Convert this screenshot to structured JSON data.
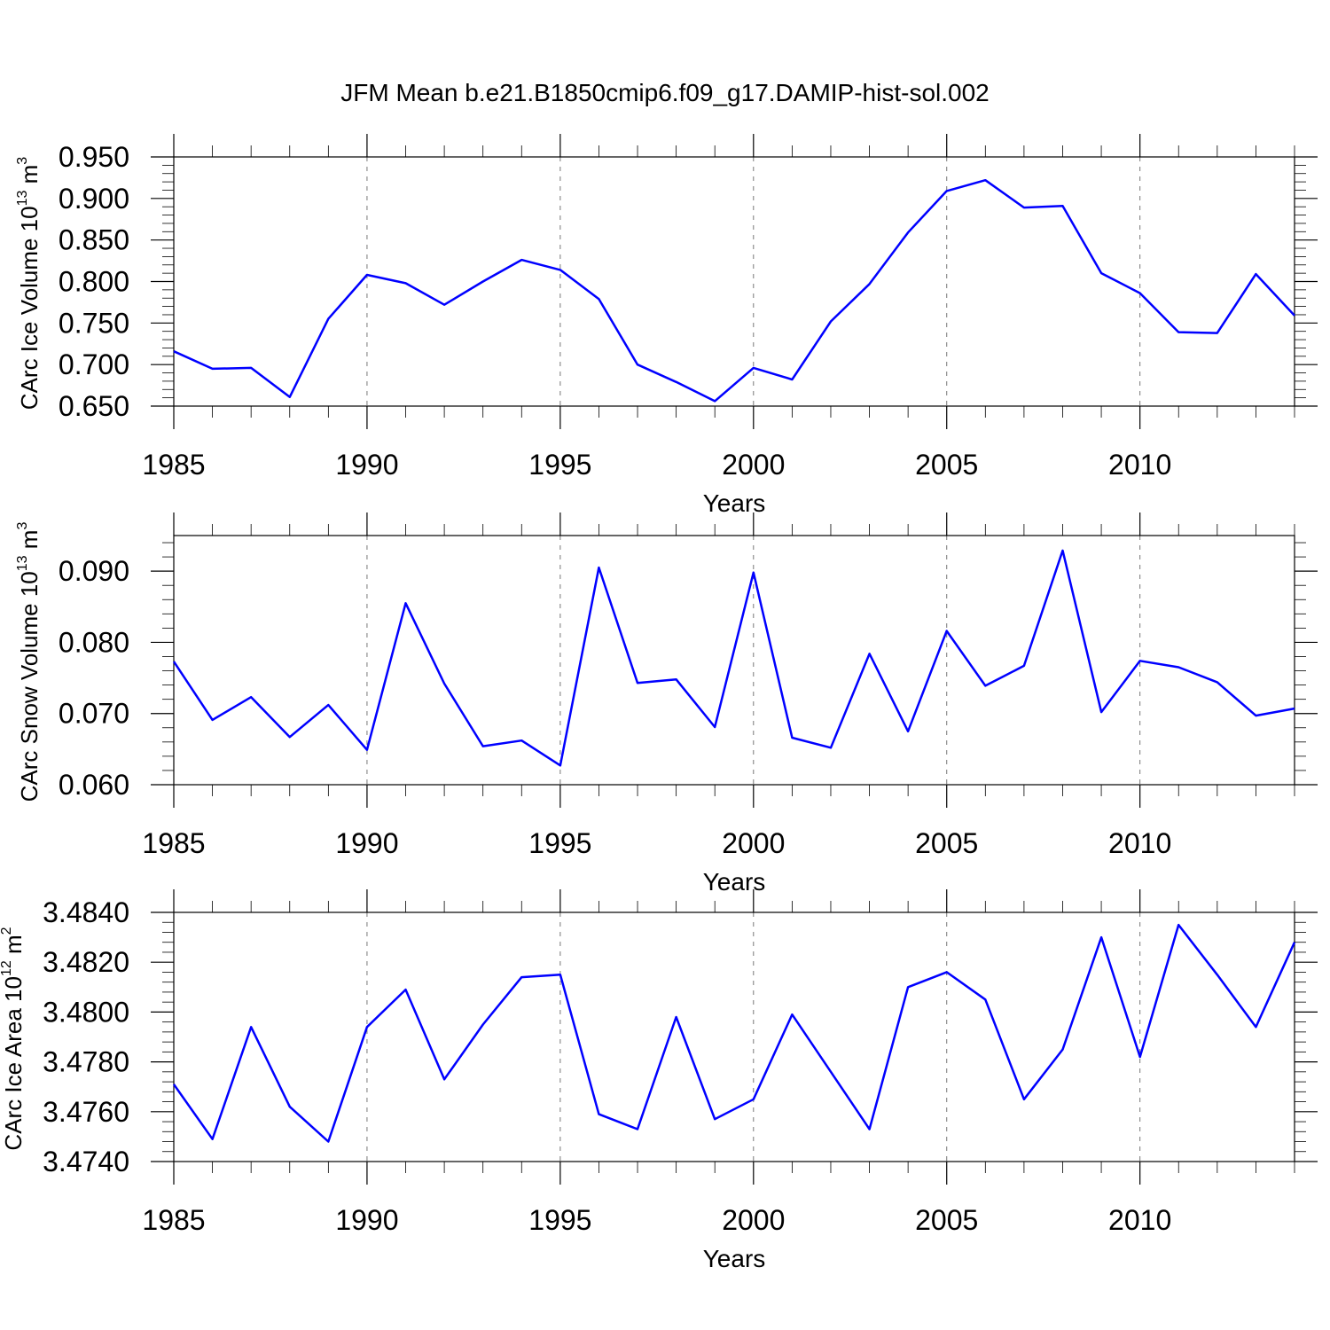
{
  "title": "JFM Mean b.e21.B1850cmip6.f09_g17.DAMIP-hist-sol.002",
  "chart_data": [
    {
      "type": "line",
      "xlabel": "Years",
      "ylabel_prefix": "CArc Ice Volume 10",
      "ylabel_exp": "13",
      "ylabel_unit": " m",
      "ylabel_unit_exp": "3",
      "xlim": [
        1985,
        2014
      ],
      "ylim": [
        0.65,
        0.95
      ],
      "xticks": [
        "1985",
        "1990",
        "1995",
        "2000",
        "2005",
        "2010"
      ],
      "yticks": [
        "0.650",
        "0.700",
        "0.750",
        "0.800",
        "0.850",
        "0.900",
        "0.950"
      ],
      "color": "#0000ff",
      "x": [
        1985,
        1986,
        1987,
        1988,
        1989,
        1990,
        1991,
        1992,
        1993,
        1994,
        1995,
        1996,
        1997,
        1998,
        1999,
        2000,
        2001,
        2002,
        2003,
        2004,
        2005,
        2006,
        2007,
        2008,
        2009,
        2010,
        2011,
        2012,
        2013,
        2014
      ],
      "values": [
        0.716,
        0.695,
        0.696,
        0.661,
        0.755,
        0.808,
        0.798,
        0.772,
        0.8,
        0.826,
        0.814,
        0.779,
        0.7,
        0.679,
        0.656,
        0.696,
        0.682,
        0.752,
        0.797,
        0.859,
        0.909,
        0.922,
        0.889,
        0.891,
        0.81,
        0.786,
        0.739,
        0.738,
        0.809,
        0.759
      ]
    },
    {
      "type": "line",
      "xlabel": "Years",
      "ylabel_prefix": "CArc Snow Volume 10",
      "ylabel_exp": "13",
      "ylabel_unit": " m",
      "ylabel_unit_exp": "3",
      "xlim": [
        1985,
        2014
      ],
      "ylim": [
        0.06,
        0.095
      ],
      "xticks": [
        "1985",
        "1990",
        "1995",
        "2000",
        "2005",
        "2010"
      ],
      "yticks": [
        "0.060",
        "0.070",
        "0.080",
        "0.090"
      ],
      "color": "#0000ff",
      "x": [
        1985,
        1986,
        1987,
        1988,
        1989,
        1990,
        1991,
        1992,
        1993,
        1994,
        1995,
        1996,
        1997,
        1998,
        1999,
        2000,
        2001,
        2002,
        2003,
        2004,
        2005,
        2006,
        2007,
        2008,
        2009,
        2010,
        2011,
        2012,
        2013,
        2014
      ],
      "values": [
        0.0773,
        0.0691,
        0.0723,
        0.0667,
        0.0712,
        0.0649,
        0.0855,
        0.0742,
        0.0654,
        0.0662,
        0.0627,
        0.0905,
        0.0743,
        0.0748,
        0.0681,
        0.0898,
        0.0666,
        0.0652,
        0.0784,
        0.0675,
        0.0816,
        0.0739,
        0.0767,
        0.0929,
        0.0702,
        0.0774,
        0.0765,
        0.0744,
        0.0697,
        0.0707
      ]
    },
    {
      "type": "line",
      "xlabel": "Years",
      "ylabel_prefix": "CArc Ice Area 10",
      "ylabel_exp": "12",
      "ylabel_unit": " m",
      "ylabel_unit_exp": "2",
      "xlim": [
        1985,
        2014
      ],
      "ylim": [
        3.474,
        3.484
      ],
      "xticks": [
        "1985",
        "1990",
        "1995",
        "2000",
        "2005",
        "2010"
      ],
      "yticks": [
        "3.4740",
        "3.4760",
        "3.4780",
        "3.4800",
        "3.4820",
        "3.4840"
      ],
      "color": "#0000ff",
      "x": [
        1985,
        1986,
        1987,
        1988,
        1989,
        1990,
        1991,
        1992,
        1993,
        1994,
        1995,
        1996,
        1997,
        1998,
        1999,
        2000,
        2001,
        2002,
        2003,
        2004,
        2005,
        2006,
        2007,
        2008,
        2009,
        2010,
        2011,
        2012,
        2013,
        2014
      ],
      "values": [
        3.4771,
        3.4749,
        3.4794,
        3.4762,
        3.4748,
        3.4794,
        3.4809,
        3.4773,
        3.4795,
        3.4814,
        3.4815,
        3.4759,
        3.4753,
        3.4798,
        3.4757,
        3.4765,
        3.4799,
        3.4776,
        3.4753,
        3.481,
        3.4816,
        3.4805,
        3.4765,
        3.4785,
        3.483,
        3.4782,
        3.4835,
        3.4815,
        3.4794,
        3.4828
      ]
    }
  ]
}
